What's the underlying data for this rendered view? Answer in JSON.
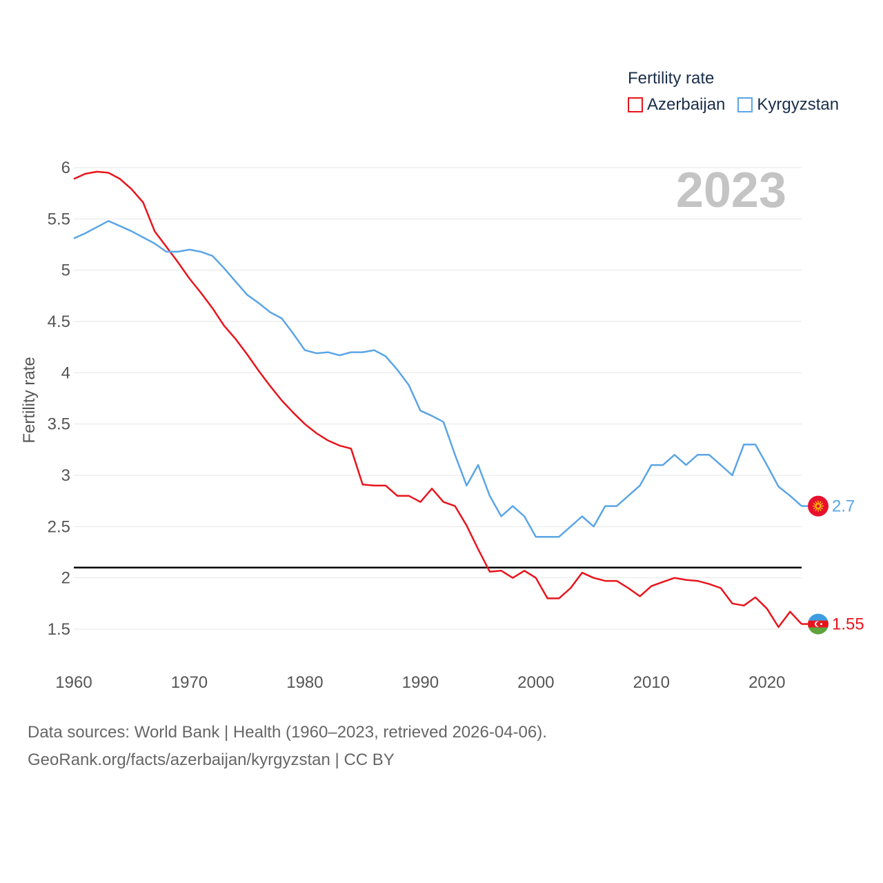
{
  "legend": {
    "title": "Fertility rate",
    "items": [
      {
        "label": "Azerbaijan",
        "color": "#e8141c"
      },
      {
        "label": "Kyrgyzstan",
        "color": "#5aa5e6"
      }
    ]
  },
  "year_label": "2023",
  "footer": {
    "line1": "Data sources: World Bank | Health (1960–2023, retrieved 2026-04-06).",
    "line2": "GeoRank.org/facts/azerbaijan/kyrgyzstan | CC BY"
  },
  "chart_data": {
    "type": "line",
    "title": "Fertility rate",
    "xlabel": "",
    "ylabel": "Fertility rate",
    "xlim": [
      1960,
      2023
    ],
    "ylim": [
      1.3,
      6.1
    ],
    "x_ticks": [
      1960,
      1970,
      1980,
      1990,
      2000,
      2010,
      2020
    ],
    "y_ticks": [
      1.5,
      2,
      2.5,
      3,
      3.5,
      4,
      4.5,
      5,
      5.5,
      6
    ],
    "y_tick_labels": [
      "1.5",
      "2",
      "2.5",
      "3",
      "3.5",
      "4",
      "4.5",
      "5",
      "5.5",
      "6"
    ],
    "reference_line": {
      "y": 2.1,
      "color": "#000000"
    },
    "x": [
      1960,
      1961,
      1962,
      1963,
      1964,
      1965,
      1966,
      1967,
      1968,
      1969,
      1970,
      1971,
      1972,
      1973,
      1974,
      1975,
      1976,
      1977,
      1978,
      1979,
      1980,
      1981,
      1982,
      1983,
      1984,
      1985,
      1986,
      1987,
      1988,
      1989,
      1990,
      1991,
      1992,
      1993,
      1994,
      1995,
      1996,
      1997,
      1998,
      1999,
      2000,
      2001,
      2002,
      2003,
      2004,
      2005,
      2006,
      2007,
      2008,
      2009,
      2010,
      2011,
      2012,
      2013,
      2014,
      2015,
      2016,
      2017,
      2018,
      2019,
      2020,
      2021,
      2022,
      2023
    ],
    "series": [
      {
        "name": "Azerbaijan",
        "color": "#e8141c",
        "end_label": "1.55",
        "flag": "azerbaijan",
        "values": [
          5.89,
          5.94,
          5.96,
          5.95,
          5.89,
          5.79,
          5.66,
          5.38,
          5.23,
          5.08,
          4.92,
          4.78,
          4.63,
          4.46,
          4.33,
          4.18,
          4.02,
          3.87,
          3.73,
          3.61,
          3.5,
          3.41,
          3.34,
          3.29,
          3.26,
          2.91,
          2.9,
          2.9,
          2.8,
          2.8,
          2.74,
          2.87,
          2.74,
          2.7,
          2.51,
          2.28,
          2.06,
          2.07,
          2.0,
          2.07,
          2.0,
          1.8,
          1.8,
          1.9,
          2.05,
          2.0,
          1.97,
          1.97,
          1.9,
          1.82,
          1.92,
          1.96,
          2.0,
          1.98,
          1.97,
          1.94,
          1.9,
          1.75,
          1.73,
          1.81,
          1.7,
          1.52,
          1.67,
          1.55
        ]
      },
      {
        "name": "Kyrgyzstan",
        "color": "#5aa5e6",
        "end_label": "2.7",
        "flag": "kyrgyzstan",
        "values": [
          5.31,
          5.36,
          5.42,
          5.48,
          5.43,
          5.38,
          5.32,
          5.26,
          5.18,
          5.18,
          5.2,
          5.18,
          5.14,
          5.02,
          4.89,
          4.76,
          4.68,
          4.59,
          4.53,
          4.38,
          4.22,
          4.19,
          4.2,
          4.17,
          4.2,
          4.2,
          4.22,
          4.16,
          4.03,
          3.88,
          3.63,
          3.58,
          3.52,
          3.2,
          2.9,
          3.1,
          2.8,
          2.6,
          2.7,
          2.6,
          2.4,
          2.4,
          2.4,
          2.5,
          2.6,
          2.5,
          2.7,
          2.7,
          2.8,
          2.9,
          3.1,
          3.1,
          3.2,
          3.1,
          3.2,
          3.2,
          3.1,
          3.0,
          3.3,
          3.3,
          3.1,
          2.89,
          2.8,
          2.7
        ]
      }
    ]
  }
}
